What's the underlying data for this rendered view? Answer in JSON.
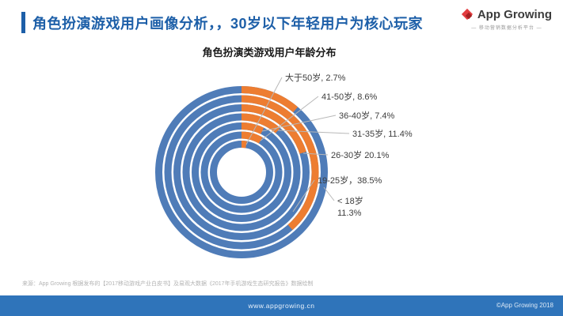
{
  "header": {
    "title": "角色扮演游戏用户画像分析，，30岁以下年轻用户为核心玩家",
    "accent_color": "#1d5fa8"
  },
  "logo": {
    "brand": "App Growing",
    "tagline": "— 移动营销数据分析平台 —",
    "mark_color": "#e23c3f"
  },
  "chart_data": {
    "type": "radial-bar",
    "title": "角色扮演类游戏用户年龄分布",
    "categories": [
      "大于50岁",
      "41-50岁",
      "36-40岁",
      "31-35岁",
      "26-30岁",
      "19-25岁",
      "< 18岁"
    ],
    "values": [
      2.7,
      8.6,
      7.4,
      11.4,
      20.1,
      38.5,
      11.3
    ],
    "unit": "%",
    "ring_order": "inner-to-outer",
    "start_angle_deg": 0,
    "direction": "clockwise",
    "ring_color": "#4f7cb8",
    "bar_color": "#ed7d31",
    "leader_line_color": "#b8b8b8",
    "labels": [
      "大于50岁, 2.7%",
      "41-50岁, 8.6%",
      "36-40岁, 7.4%",
      "31-35岁, 11.4%",
      "26-30岁   20.1%",
      "19-25岁，38.5%",
      "< 18岁\n11.3%"
    ]
  },
  "source_note": "来源：App Growing 根据发布的【2017移动游戏产业白皮书】及易观大数据《2017年手机游戏生态研究报告》数据绘制",
  "footer": {
    "url": "www.appgrowing.cn",
    "copyright": "©App Growing 2018"
  }
}
